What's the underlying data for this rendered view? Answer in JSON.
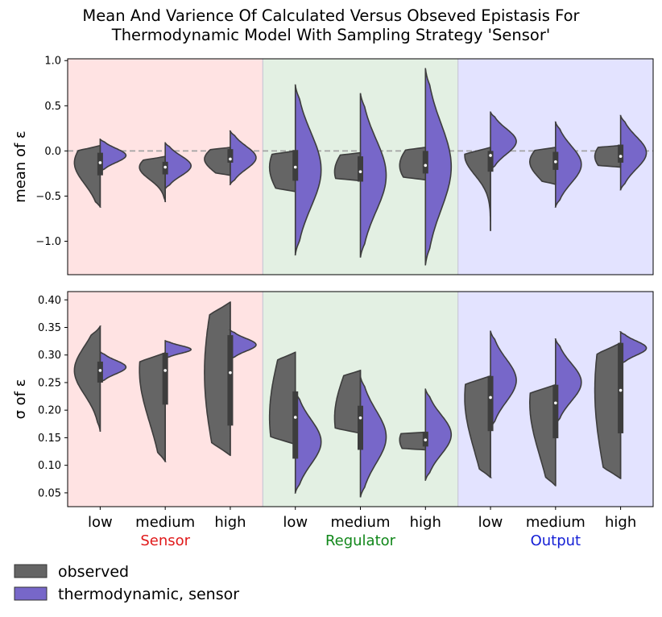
{
  "title_line1": "Mean And Varience Of Calculated Versus Obseved Epistasis For",
  "title_line2": "Thermodynamic Model With Sampling Strategy 'Sensor'",
  "legend": {
    "observed": "observed",
    "thermodynamic": "thermodynamic, sensor"
  },
  "colors": {
    "observed": "#656565",
    "thermodynamic": "#7767c9",
    "sensor_bg": "#ffe3e3",
    "regulator_bg": "#e3f0e3",
    "output_bg": "#e3e3ff",
    "sensor_text": "#e0191a",
    "regulator_text": "#11871a",
    "output_text": "#1520d6"
  },
  "groups": [
    "Sensor",
    "Regulator",
    "Output"
  ],
  "categories": [
    "low",
    "medium",
    "high",
    "low",
    "medium",
    "high",
    "low",
    "medium",
    "high"
  ],
  "chart_data": [
    {
      "type": "violin",
      "ylabel": "mean of ε",
      "ylim": [
        -1.37,
        1.02
      ],
      "yticks": [
        1.0,
        0.5,
        0.0,
        -0.5,
        -1.0
      ],
      "ytick_labels": [
        "1.0",
        "0.5",
        "0.0",
        "−0.5",
        "−1.0"
      ],
      "reference_line": 0.0,
      "series": [
        {
          "name": "observed",
          "median": [
            -0.13,
            -0.18,
            -0.09,
            -0.18,
            -0.23,
            -0.16,
            -0.05,
            -0.12,
            -0.06
          ],
          "q1": [
            -0.27,
            -0.26,
            -0.13,
            -0.33,
            -0.34,
            -0.25,
            -0.23,
            -0.21,
            -0.13
          ],
          "q3": [
            -0.02,
            -0.12,
            0.02,
            0.01,
            -0.06,
            0.0,
            0.0,
            -0.01,
            0.07
          ],
          "min": [
            -0.62,
            -0.56,
            -0.27,
            -0.45,
            -0.33,
            -0.32,
            -0.88,
            -0.37,
            -0.18
          ],
          "max": [
            0.06,
            -0.06,
            0.04,
            0.0,
            -0.02,
            0.04,
            0.04,
            0.04,
            0.06
          ]
        },
        {
          "name": "thermodynamic, sensor",
          "min": [
            -0.23,
            -0.42,
            -0.37,
            -1.15,
            -1.18,
            -1.26,
            -0.22,
            -0.62,
            -0.43
          ],
          "max": [
            0.13,
            0.09,
            0.22,
            0.73,
            0.64,
            0.91,
            0.43,
            0.32,
            0.39
          ]
        }
      ]
    },
    {
      "type": "violin",
      "ylabel": "σ of ε",
      "ylim": [
        0.025,
        0.415
      ],
      "yticks": [
        0.4,
        0.35,
        0.3,
        0.25,
        0.2,
        0.15,
        0.1,
        0.05
      ],
      "ytick_labels": [
        "0.40",
        "0.35",
        "0.30",
        "0.25",
        "0.20",
        "0.15",
        "0.10",
        "0.05"
      ],
      "series": [
        {
          "name": "observed",
          "median": [
            0.272,
            0.272,
            0.268,
            0.187,
            0.186,
            0.146,
            0.223,
            0.213,
            0.236
          ],
          "q1": [
            0.25,
            0.21,
            0.172,
            0.112,
            0.128,
            0.134,
            0.162,
            0.149,
            0.158
          ],
          "q3": [
            0.288,
            0.304,
            0.336,
            0.234,
            0.208,
            0.161,
            0.262,
            0.246,
            0.322
          ],
          "min": [
            0.162,
            0.107,
            0.118,
            0.138,
            0.158,
            0.128,
            0.078,
            0.063,
            0.076
          ],
          "max": [
            0.352,
            0.304,
            0.396,
            0.305,
            0.272,
            0.16,
            0.262,
            0.246,
            0.322
          ]
        },
        {
          "name": "thermodynamic, sensor",
          "min": [
            0.25,
            0.294,
            0.292,
            0.05,
            0.042,
            0.073,
            0.165,
            0.172,
            0.283
          ],
          "max": [
            0.306,
            0.326,
            0.345,
            0.235,
            0.261,
            0.238,
            0.343,
            0.329,
            0.342
          ]
        }
      ]
    }
  ]
}
